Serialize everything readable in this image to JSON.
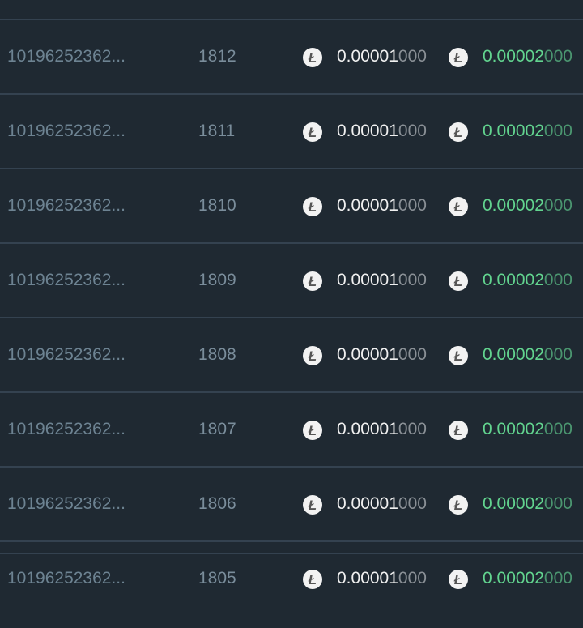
{
  "rows": [
    {
      "id": "10196252362...",
      "block": "1812",
      "fee_main": "0.00001",
      "fee_tail": "000",
      "reward_main": "0.00002",
      "reward_tail": "000"
    },
    {
      "id": "10196252362...",
      "block": "1811",
      "fee_main": "0.00001",
      "fee_tail": "000",
      "reward_main": "0.00002",
      "reward_tail": "000"
    },
    {
      "id": "10196252362...",
      "block": "1810",
      "fee_main": "0.00001",
      "fee_tail": "000",
      "reward_main": "0.00002",
      "reward_tail": "000"
    },
    {
      "id": "10196252362...",
      "block": "1809",
      "fee_main": "0.00001",
      "fee_tail": "000",
      "reward_main": "0.00002",
      "reward_tail": "000"
    },
    {
      "id": "10196252362...",
      "block": "1808",
      "fee_main": "0.00001",
      "fee_tail": "000",
      "reward_main": "0.00002",
      "reward_tail": "000"
    },
    {
      "id": "10196252362...",
      "block": "1807",
      "fee_main": "0.00001",
      "fee_tail": "000",
      "reward_main": "0.00002",
      "reward_tail": "000"
    },
    {
      "id": "10196252362...",
      "block": "1806",
      "fee_main": "0.00001",
      "fee_tail": "000",
      "reward_main": "0.00002",
      "reward_tail": "000"
    },
    {
      "id": "10196252362...",
      "block": "1805",
      "fee_main": "0.00001",
      "fee_tail": "000",
      "reward_main": "0.00002",
      "reward_tail": "000"
    }
  ],
  "coin_icon": "litecoin-icon",
  "coin_glyph": "Ł",
  "colors": {
    "background": "#1f2932",
    "positive": "#62d48f"
  }
}
